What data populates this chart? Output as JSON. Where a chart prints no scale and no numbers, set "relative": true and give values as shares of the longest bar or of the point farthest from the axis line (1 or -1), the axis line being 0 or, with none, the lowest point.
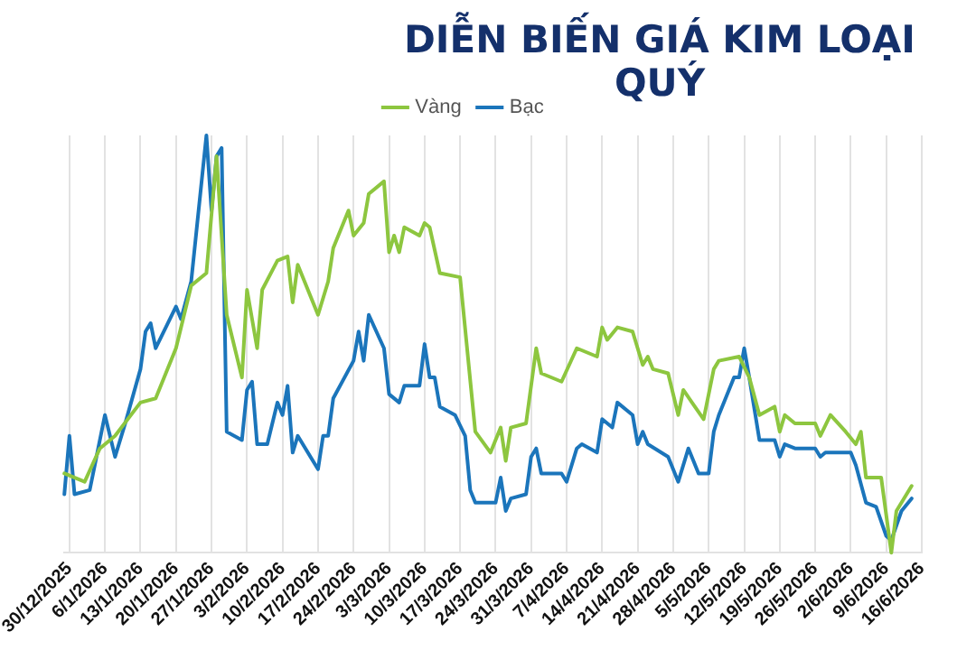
{
  "chart_data": {
    "type": "line",
    "title": "DIỄN BIẾN GIÁ KIM LOẠI QUÝ",
    "relative": true,
    "grid": "x",
    "legend": "top",
    "marker": "none",
    "line_style": "solid",
    "xlim": [
      "2025-12-29",
      "2026-06-16"
    ],
    "xticks": [
      {
        "value": "2025-12-30",
        "label": "30/12/2025"
      },
      {
        "value": "2026-01-06",
        "label": "6/1/2026"
      },
      {
        "value": "2026-01-13",
        "label": "13/1/2026"
      },
      {
        "value": "2026-01-20",
        "label": "20/1/2026"
      },
      {
        "value": "2026-01-27",
        "label": "27/1/2026"
      },
      {
        "value": "2026-02-03",
        "label": "3/2/2026"
      },
      {
        "value": "2026-02-10",
        "label": "10/2/2026"
      },
      {
        "value": "2026-02-17",
        "label": "17/2/2026"
      },
      {
        "value": "2026-02-24",
        "label": "24/2/2026"
      },
      {
        "value": "2026-03-03",
        "label": "3/3/2026"
      },
      {
        "value": "2026-03-10",
        "label": "10/3/2026"
      },
      {
        "value": "2026-03-17",
        "label": "17/3/2026"
      },
      {
        "value": "2026-03-24",
        "label": "24/3/2026"
      },
      {
        "value": "2026-03-31",
        "label": "31/3/2026"
      },
      {
        "value": "2026-04-07",
        "label": "7/4/2026"
      },
      {
        "value": "2026-04-14",
        "label": "14/4/2026"
      },
      {
        "value": "2026-04-21",
        "label": "21/4/2026"
      },
      {
        "value": "2026-04-28",
        "label": "28/4/2026"
      },
      {
        "value": "2026-05-05",
        "label": "5/5/2026"
      },
      {
        "value": "2026-05-12",
        "label": "12/5/2026"
      },
      {
        "value": "2026-05-19",
        "label": "19/5/2026"
      },
      {
        "value": "2026-05-26",
        "label": "26/5/2026"
      },
      {
        "value": "2026-06-02",
        "label": "2/6/2026"
      },
      {
        "value": "2026-06-09",
        "label": "9/6/2026"
      },
      {
        "value": "2026-06-16",
        "label": "16/6/2026"
      }
    ],
    "series": [
      {
        "name": "Vàng",
        "color": "#8dc63f",
        "x": [
          "2025-12-29",
          "2026-01-02",
          "2026-01-05",
          "2026-01-08",
          "2026-01-13",
          "2026-01-16",
          "2026-01-20",
          "2026-01-23",
          "2026-01-26",
          "2026-01-28",
          "2026-01-30",
          "2026-02-02",
          "2026-02-03",
          "2026-02-05",
          "2026-02-06",
          "2026-02-09",
          "2026-02-11",
          "2026-02-12",
          "2026-02-13",
          "2026-02-17",
          "2026-02-19",
          "2026-02-20",
          "2026-02-23",
          "2026-02-24",
          "2026-02-26",
          "2026-02-27",
          "2026-03-02",
          "2026-03-03",
          "2026-03-04",
          "2026-03-05",
          "2026-03-06",
          "2026-03-09",
          "2026-03-10",
          "2026-03-11",
          "2026-03-13",
          "2026-03-17",
          "2026-03-20",
          "2026-03-23",
          "2026-03-25",
          "2026-03-26",
          "2026-03-27",
          "2026-03-30",
          "2026-04-01",
          "2026-04-02",
          "2026-04-06",
          "2026-04-09",
          "2026-04-13",
          "2026-04-14",
          "2026-04-15",
          "2026-04-17",
          "2026-04-20",
          "2026-04-22",
          "2026-04-23",
          "2026-04-24",
          "2026-04-27",
          "2026-04-29",
          "2026-04-30",
          "2026-05-04",
          "2026-05-06",
          "2026-05-07",
          "2026-05-11",
          "2026-05-13",
          "2026-05-15",
          "2026-05-18",
          "2026-05-19",
          "2026-05-20",
          "2026-05-22",
          "2026-05-26",
          "2026-05-27",
          "2026-05-29",
          "2026-06-01",
          "2026-06-03",
          "2026-06-04",
          "2026-06-05",
          "2026-06-08",
          "2026-06-10",
          "2026-06-11",
          "2026-06-14"
        ],
        "values": [
          0.19,
          0.17,
          0.25,
          0.28,
          0.36,
          0.37,
          0.49,
          0.64,
          0.67,
          0.95,
          0.57,
          0.42,
          0.63,
          0.49,
          0.63,
          0.7,
          0.71,
          0.6,
          0.69,
          0.57,
          0.65,
          0.73,
          0.82,
          0.76,
          0.79,
          0.86,
          0.89,
          0.72,
          0.76,
          0.72,
          0.78,
          0.76,
          0.79,
          0.78,
          0.67,
          0.66,
          0.29,
          0.24,
          0.3,
          0.22,
          0.3,
          0.31,
          0.49,
          0.43,
          0.41,
          0.49,
          0.47,
          0.54,
          0.51,
          0.54,
          0.53,
          0.45,
          0.47,
          0.44,
          0.43,
          0.33,
          0.39,
          0.32,
          0.44,
          0.46,
          0.47,
          0.42,
          0.33,
          0.35,
          0.29,
          0.33,
          0.31,
          0.31,
          0.28,
          0.33,
          0.29,
          0.26,
          0.29,
          0.18,
          0.18,
          0.0,
          0.1,
          0.16
        ]
      },
      {
        "name": "Bạc",
        "color": "#1b75bb",
        "x": [
          "2025-12-29",
          "2025-12-30",
          "2025-12-31",
          "2026-01-03",
          "2026-01-06",
          "2026-01-08",
          "2026-01-10",
          "2026-01-13",
          "2026-01-14",
          "2026-01-15",
          "2026-01-16",
          "2026-01-20",
          "2026-01-21",
          "2026-01-23",
          "2026-01-26",
          "2026-01-27",
          "2026-01-28",
          "2026-01-29",
          "2026-01-30",
          "2026-02-02",
          "2026-02-03",
          "2026-02-04",
          "2026-02-05",
          "2026-02-07",
          "2026-02-09",
          "2026-02-10",
          "2026-02-11",
          "2026-02-12",
          "2026-02-13",
          "2026-02-17",
          "2026-02-18",
          "2026-02-19",
          "2026-02-20",
          "2026-02-24",
          "2026-02-25",
          "2026-02-26",
          "2026-02-27",
          "2026-03-02",
          "2026-03-03",
          "2026-03-05",
          "2026-03-06",
          "2026-03-09",
          "2026-03-10",
          "2026-03-11",
          "2026-03-12",
          "2026-03-13",
          "2026-03-16",
          "2026-03-18",
          "2026-03-19",
          "2026-03-20",
          "2026-03-23",
          "2026-03-24",
          "2026-03-25",
          "2026-03-26",
          "2026-03-27",
          "2026-03-30",
          "2026-03-31",
          "2026-04-01",
          "2026-04-02",
          "2026-04-06",
          "2026-04-07",
          "2026-04-09",
          "2026-04-10",
          "2026-04-13",
          "2026-04-14",
          "2026-04-16",
          "2026-04-17",
          "2026-04-20",
          "2026-04-21",
          "2026-04-22",
          "2026-04-23",
          "2026-04-27",
          "2026-04-29",
          "2026-05-01",
          "2026-05-03",
          "2026-05-05",
          "2026-05-06",
          "2026-05-07",
          "2026-05-10",
          "2026-05-11",
          "2026-05-12",
          "2026-05-13",
          "2026-05-15",
          "2026-05-18",
          "2026-05-19",
          "2026-05-20",
          "2026-05-22",
          "2026-05-26",
          "2026-05-27",
          "2026-05-28",
          "2026-06-02",
          "2026-06-03",
          "2026-06-05",
          "2026-06-07",
          "2026-06-09",
          "2026-06-10",
          "2026-06-12",
          "2026-06-14"
        ],
        "values": [
          0.14,
          0.28,
          0.14,
          0.15,
          0.33,
          0.23,
          0.31,
          0.44,
          0.53,
          0.55,
          0.49,
          0.59,
          0.56,
          0.65,
          1.0,
          0.82,
          0.95,
          0.97,
          0.29,
          0.27,
          0.39,
          0.41,
          0.26,
          0.26,
          0.36,
          0.33,
          0.4,
          0.24,
          0.28,
          0.2,
          0.28,
          0.28,
          0.37,
          0.46,
          0.53,
          0.46,
          0.57,
          0.49,
          0.38,
          0.36,
          0.4,
          0.4,
          0.5,
          0.42,
          0.42,
          0.35,
          0.33,
          0.28,
          0.15,
          0.12,
          0.12,
          0.12,
          0.18,
          0.1,
          0.13,
          0.14,
          0.23,
          0.25,
          0.19,
          0.19,
          0.17,
          0.25,
          0.26,
          0.24,
          0.32,
          0.3,
          0.36,
          0.33,
          0.26,
          0.29,
          0.26,
          0.23,
          0.17,
          0.25,
          0.19,
          0.19,
          0.29,
          0.33,
          0.42,
          0.42,
          0.49,
          0.42,
          0.27,
          0.27,
          0.23,
          0.26,
          0.25,
          0.25,
          0.23,
          0.24,
          0.24,
          0.21,
          0.12,
          0.11,
          0.04,
          0.03,
          0.1,
          0.13
        ]
      }
    ]
  }
}
